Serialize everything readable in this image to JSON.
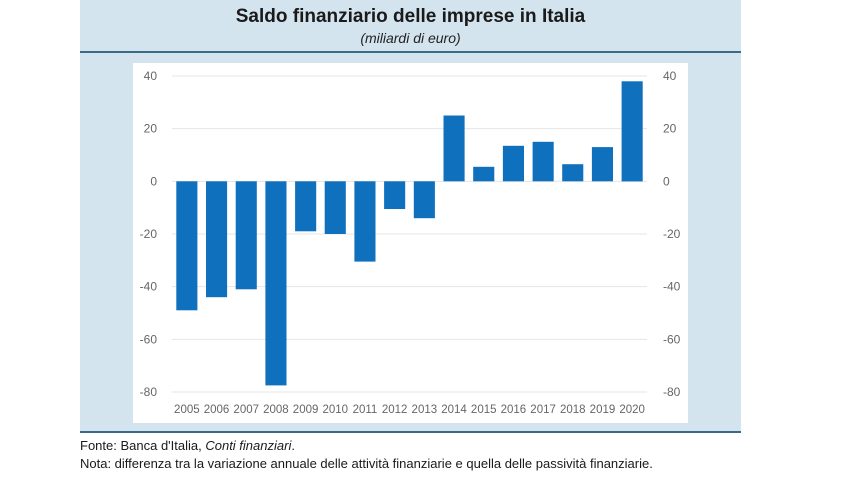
{
  "chart_data": {
    "type": "bar",
    "title": "Saldo finanziario delle imprese in Italia",
    "subtitle": "(miliardi di euro)",
    "xlabel": "",
    "ylabel": "",
    "categories": [
      "2005",
      "2006",
      "2007",
      "2008",
      "2009",
      "2010",
      "2011",
      "2012",
      "2013",
      "2014",
      "2015",
      "2016",
      "2017",
      "2018",
      "2019",
      "2020"
    ],
    "values": [
      -49,
      -44,
      -41,
      -77.5,
      -19,
      -20,
      -30.5,
      -10.5,
      -14,
      25,
      5.5,
      13.5,
      15,
      6.5,
      13,
      38
    ],
    "ylim": [
      -80,
      40
    ],
    "yticks": [
      40,
      20,
      0,
      -20,
      -40,
      -60,
      -80
    ],
    "ytick_labels": [
      "40",
      "20",
      "0",
      "-20",
      "-40",
      "-60",
      "-80"
    ],
    "secondary_yaxis": true,
    "grid": true,
    "legend": "none",
    "bar_color": "#0F70BE"
  },
  "footer": {
    "source_prefix": "Fonte: Banca d'Italia, ",
    "source_italic": "Conti finanziari",
    "source_suffix": ".",
    "note": "Nota: differenza tra la variazione annuale delle attività finanziarie e quella delle passività finanziarie."
  }
}
